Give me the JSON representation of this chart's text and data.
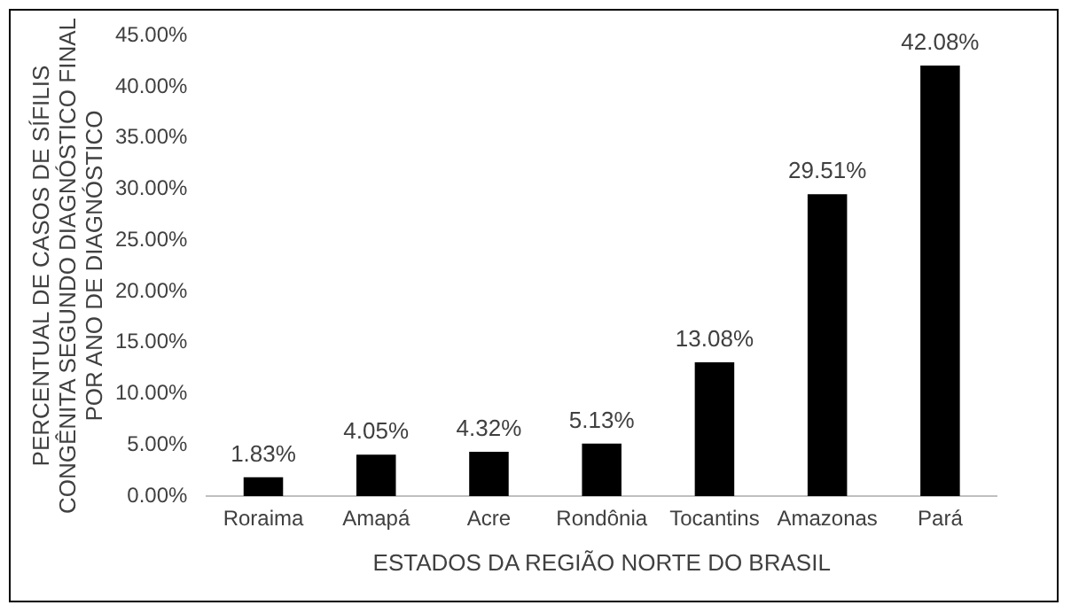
{
  "chart_data": {
    "type": "bar",
    "ylabel": "PERCENTUAL DE CASOS DE SÍFILIS CONGÊNITA SEGUNDO DIAGNÓSTICO FINAL POR ANO DE DIAGNÓSTICO",
    "xlabel": "ESTADOS DA REGIÃO NORTE DO BRASIL",
    "categories": [
      "Roraima",
      "Amapá",
      "Acre",
      "Rondônia",
      "Tocantins",
      "Amazonas",
      "Pará"
    ],
    "values": [
      1.83,
      4.05,
      4.32,
      5.13,
      13.08,
      29.51,
      42.08
    ],
    "value_labels": [
      "1.83%",
      "4.05%",
      "4.32%",
      "5.13%",
      "13.08%",
      "29.51%",
      "42.08%"
    ],
    "color": "#000000",
    "ylim": [
      0,
      45
    ],
    "yticks": [
      {
        "value": 0,
        "label": "0.00%"
      },
      {
        "value": 5,
        "label": "5.00%"
      },
      {
        "value": 10,
        "label": "10.00%"
      },
      {
        "value": 15,
        "label": "15.00%"
      },
      {
        "value": 20,
        "label": "20.00%"
      },
      {
        "value": 25,
        "label": "25.00%"
      },
      {
        "value": 30,
        "label": "30.00%"
      },
      {
        "value": 35,
        "label": "35.00%"
      },
      {
        "value": 40,
        "label": "40.00%"
      },
      {
        "value": 45,
        "label": "45.00%"
      }
    ],
    "grid": false,
    "legend": false
  }
}
